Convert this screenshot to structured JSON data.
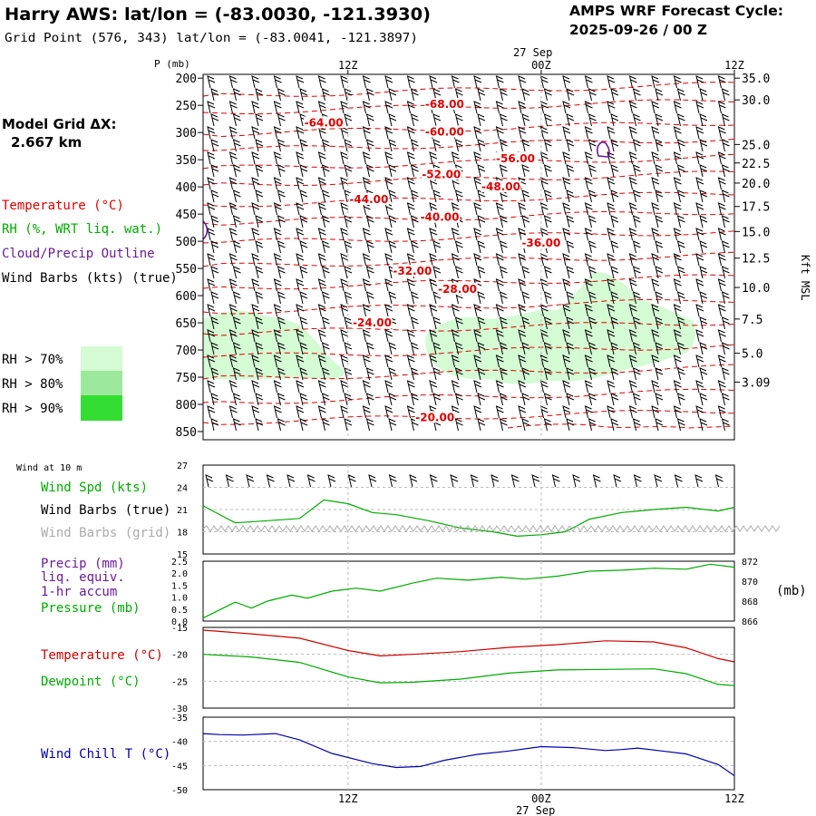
{
  "header": {
    "title": "Harry AWS:  lat/lon = (-83.0030, -121.3930)",
    "subtitle": "Grid Point (576, 343) lat/lon = (-83.0041, -121.3897)",
    "forecast_title": "AMPS WRF Forecast Cycle:",
    "forecast_cycle": "2025-09-26 / 00  Z"
  },
  "left_panel": {
    "model_grid_label": "Model Grid ΔX:",
    "model_grid_value": "2.667 km",
    "legend": [
      {
        "label": "Temperature (°C)",
        "color": "#dd0000"
      },
      {
        "label": "RH (%, WRT liq. wat.)",
        "color": "#00aa00"
      },
      {
        "label": "Cloud/Precip Outline",
        "color": "#6a1b9a"
      },
      {
        "label": "Wind Barbs (kts) (true)",
        "color": "#000000"
      }
    ],
    "rh_legend": [
      {
        "label": "RH > 70%",
        "color": "#d4fbd4"
      },
      {
        "label": "RH > 80%",
        "color": "#9ce89c"
      },
      {
        "label": "RH > 90%",
        "color": "#33dd33"
      }
    ]
  },
  "time_axis": {
    "top_date": "27 Sep",
    "bottom_date": "27 Sep",
    "ticks": [
      {
        "label": "12Z",
        "hour": 12
      },
      {
        "label": "00Z",
        "hour": 24
      },
      {
        "label": "12Z",
        "hour": 36
      }
    ],
    "start_hour": 3,
    "end_hour": 36
  },
  "chart_data": [
    {
      "name": "cross-section",
      "type": "contour",
      "ylabel": "P (mb)",
      "y2label": "Kft MSL",
      "pressure_ticks": [
        200,
        250,
        300,
        350,
        400,
        450,
        500,
        550,
        600,
        650,
        700,
        750,
        800,
        850
      ],
      "ylim": [
        865,
        193
      ],
      "height_ticks": [
        {
          "label": "35.0",
          "p": 200
        },
        {
          "label": "30.0",
          "p": 240
        },
        {
          "label": "25.0",
          "p": 322
        },
        {
          "label": "22.5",
          "p": 356
        },
        {
          "label": "20.0",
          "p": 393
        },
        {
          "label": "17.5",
          "p": 436
        },
        {
          "label": "15.0",
          "p": 482
        },
        {
          "label": "12.5",
          "p": 531
        },
        {
          "label": "10.0",
          "p": 585
        },
        {
          "label": "7.5",
          "p": 643
        },
        {
          "label": "5.0",
          "p": 706
        },
        {
          "label": "3.09",
          "p": 759
        }
      ],
      "temperature_labels": [
        {
          "text": "-68.00",
          "hour": 18.0,
          "p": 253
        },
        {
          "text": "-64.00",
          "hour": 10.5,
          "p": 287
        },
        {
          "text": "-60.00",
          "hour": 18.0,
          "p": 304
        },
        {
          "text": "-56.00",
          "hour": 22.4,
          "p": 353
        },
        {
          "text": "-52.00",
          "hour": 17.8,
          "p": 382
        },
        {
          "text": "-48.00",
          "hour": 21.5,
          "p": 405
        },
        {
          "text": "-44.00",
          "hour": 13.3,
          "p": 428
        },
        {
          "text": "-40.00",
          "hour": 17.7,
          "p": 461
        },
        {
          "text": "-36.00",
          "hour": 24.0,
          "p": 508
        },
        {
          "text": "-32.00",
          "hour": 16.0,
          "p": 560
        },
        {
          "text": "-28.00",
          "hour": 18.8,
          "p": 593
        },
        {
          "text": "-24.00",
          "hour": 13.5,
          "p": 655
        },
        {
          "text": "-20.00",
          "hour": 17.4,
          "p": 829
        }
      ]
    },
    {
      "name": "wind-panel",
      "type": "line",
      "title": "Wind at 10 m",
      "labels": [
        "Wind Spd (kts)",
        "Wind Barbs (true)",
        "Wind Barbs (grid)"
      ],
      "ylim": [
        15,
        27
      ],
      "yticks": [
        15,
        18,
        21,
        24,
        27
      ],
      "x": [
        3,
        5,
        7,
        9,
        10.5,
        12,
        13.5,
        15,
        17,
        19,
        21,
        22.5,
        24,
        25.5,
        27,
        29,
        31,
        33,
        35,
        36
      ],
      "series": [
        {
          "name": "Wind Spd (kts)",
          "color": "#00aa00",
          "values": [
            21.5,
            19.2,
            19.5,
            19.8,
            22.3,
            21.8,
            20.6,
            20.3,
            19.5,
            18.5,
            18.0,
            17.4,
            17.6,
            18.0,
            19.7,
            20.6,
            21.0,
            21.3,
            20.8,
            21.3
          ]
        }
      ]
    },
    {
      "name": "precip-pressure-panel",
      "type": "line",
      "labels": [
        "Precip (mm)",
        "liq. equiv.",
        "1-hr accum",
        "Pressure (mb)"
      ],
      "ylim": [
        0,
        2.5
      ],
      "yticks": [
        "0.0",
        "0.5",
        "1.0",
        "1.5",
        "2.0",
        "2.5"
      ],
      "y2lim": [
        866,
        872
      ],
      "y2ticks": [
        "866",
        "868",
        "870",
        "872"
      ],
      "y2label": "(mb)",
      "x": [
        3,
        5,
        6,
        7,
        8.5,
        9.5,
        11,
        12.5,
        14,
        16,
        17.5,
        19.5,
        21.5,
        23,
        25,
        27,
        29,
        31,
        33,
        34.5,
        36
      ],
      "series": [
        {
          "name": "Pressure (mb)",
          "color": "#00aa00",
          "values": [
            866.3,
            867.9,
            867.3,
            868.0,
            868.6,
            868.3,
            869.0,
            869.3,
            869.0,
            869.8,
            870.3,
            870.1,
            870.4,
            870.2,
            870.5,
            871.0,
            871.1,
            871.3,
            871.2,
            871.7,
            871.4
          ]
        }
      ]
    },
    {
      "name": "temperature-panel",
      "type": "line",
      "labels": [
        "Temperature (°C)",
        "Dewpoint (°C)"
      ],
      "ylim": [
        -30,
        -15
      ],
      "yticks": [
        -15,
        -20,
        -25,
        -30
      ],
      "x": [
        3,
        6,
        9,
        12,
        14,
        16,
        19,
        22,
        25,
        28,
        31,
        33,
        35,
        36
      ],
      "series": [
        {
          "name": "Temperature (°C)",
          "color": "#cc0000",
          "values": [
            -15.5,
            -16.2,
            -17.0,
            -19.3,
            -20.3,
            -20.0,
            -19.5,
            -18.7,
            -18.2,
            -17.5,
            -17.7,
            -18.8,
            -20.8,
            -21.4
          ]
        },
        {
          "name": "Dewpoint (°C)",
          "color": "#00aa00",
          "values": [
            -20.0,
            -20.5,
            -21.5,
            -24.2,
            -25.3,
            -25.2,
            -24.6,
            -23.5,
            -22.9,
            -22.8,
            -22.7,
            -23.6,
            -25.6,
            -25.8
          ]
        }
      ]
    },
    {
      "name": "wind-chill-panel",
      "type": "line",
      "labels": [
        "Wind Chill T (°C)"
      ],
      "ylim": [
        -50,
        -35
      ],
      "yticks": [
        -35,
        -40,
        -45,
        -50
      ],
      "x": [
        3,
        4,
        5.5,
        7.5,
        9,
        11,
        13.5,
        15,
        16.5,
        18,
        20,
        22,
        24,
        26,
        28,
        29,
        30,
        31.5,
        33,
        35,
        36
      ],
      "series": [
        {
          "name": "Wind Chill T (°C)",
          "color": "#0000aa",
          "values": [
            -38.4,
            -38.6,
            -38.7,
            -38.4,
            -39.7,
            -42.5,
            -44.6,
            -45.4,
            -45.2,
            -43.9,
            -42.7,
            -42.0,
            -41.1,
            -41.3,
            -41.9,
            -41.7,
            -41.4,
            -42.0,
            -42.6,
            -44.8,
            -47.1
          ]
        }
      ]
    }
  ]
}
